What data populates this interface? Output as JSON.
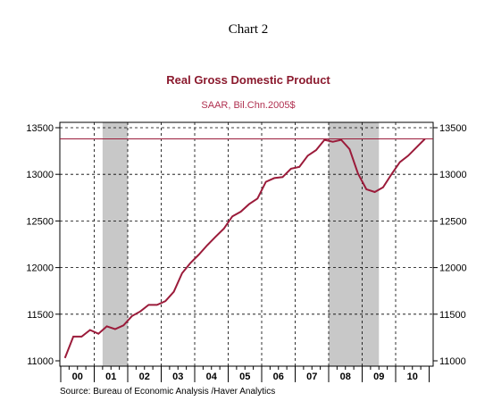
{
  "chart_data": {
    "type": "line",
    "heading": "Chart 2",
    "title": "Real Gross Domestic Product",
    "subtitle": "SAAR, Bil.Chn.2005$",
    "source": "Source:  Bureau of Economic Analysis /Haver Analytics",
    "year_labels": [
      "00",
      "01",
      "02",
      "03",
      "04",
      "05",
      "06",
      "07",
      "08",
      "09",
      "10"
    ],
    "ylim": [
      11000,
      13500
    ],
    "yticks": [
      11000,
      11500,
      12000,
      12500,
      13000,
      13500
    ],
    "recessions": [
      {
        "start": "2001Q2",
        "end": "2001Q4"
      },
      {
        "start": "2008Q1",
        "end": "2009Q2"
      }
    ],
    "reference_line": 13380,
    "grid": true,
    "colors": {
      "series": "#9b1b3a",
      "title": "#8b1a2e",
      "subtitle": "#b03050",
      "shade": "#c8c8c8"
    },
    "series": [
      {
        "x": [
          "2000Q1",
          "2000Q2",
          "2000Q3",
          "2000Q4",
          "2001Q1",
          "2001Q2",
          "2001Q3",
          "2001Q4",
          "2002Q1",
          "2002Q2",
          "2002Q3",
          "2002Q4",
          "2003Q1",
          "2003Q2",
          "2003Q3",
          "2003Q4",
          "2004Q1",
          "2004Q2",
          "2004Q3",
          "2004Q4",
          "2005Q1",
          "2005Q2",
          "2005Q3",
          "2005Q4",
          "2006Q1",
          "2006Q2",
          "2006Q3",
          "2006Q4",
          "2007Q1",
          "2007Q2",
          "2007Q3",
          "2007Q4",
          "2008Q1",
          "2008Q2",
          "2008Q3",
          "2008Q4",
          "2009Q1",
          "2009Q2",
          "2009Q3",
          "2009Q4",
          "2010Q1",
          "2010Q2",
          "2010Q3",
          "2010Q4"
        ],
        "values": [
          11030,
          11260,
          11260,
          11330,
          11290,
          11370,
          11340,
          11380,
          11480,
          11530,
          11600,
          11600,
          11640,
          11740,
          11940,
          12050,
          12140,
          12240,
          12330,
          12420,
          12550,
          12600,
          12680,
          12740,
          12920,
          12960,
          12970,
          13060,
          13080,
          13200,
          13260,
          13370,
          13350,
          13370,
          13270,
          13010,
          12840,
          12810,
          12860,
          13000,
          13130,
          13200,
          13290,
          13380
        ]
      }
    ]
  }
}
